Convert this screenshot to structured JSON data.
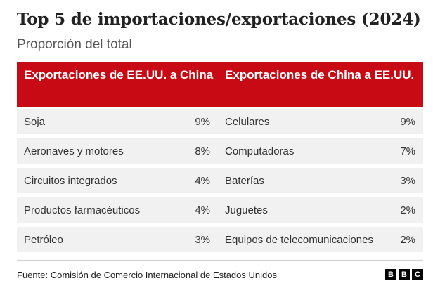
{
  "title": "Top 5 de importaciones/exportaciones (2024)",
  "subtitle": "Proporción del total",
  "source": "Fuente: Comisión de Comercio Internacional de Estados Unidos",
  "logo_letters": [
    "B",
    "B",
    "C"
  ],
  "colors": {
    "header_bg": "#c70a14",
    "row_bg": "#f1f1f1"
  },
  "chart_data": {
    "type": "table",
    "title": "Top 5 de importaciones/exportaciones (2024)",
    "subtitle": "Proporción del total",
    "columns": [
      "Exportaciones de EE.UU. a China",
      "Exportaciones de China a EE.UU."
    ],
    "left_rows": [
      {
        "label": "Soja",
        "value": "9%"
      },
      {
        "label": "Aeronaves y motores",
        "value": "8%"
      },
      {
        "label": "Circuitos integrados",
        "value": "4%"
      },
      {
        "label": "Productos farmacéuticos",
        "value": "4%"
      },
      {
        "label": "Petróleo",
        "value": "3%"
      }
    ],
    "right_rows": [
      {
        "label": "Celulares",
        "value": "9%"
      },
      {
        "label": "Computadoras",
        "value": "7%"
      },
      {
        "label": "Baterías",
        "value": "3%"
      },
      {
        "label": "Juguetes",
        "value": "2%"
      },
      {
        "label": "Equipos de telecomunicaciones",
        "value": "2%"
      }
    ]
  }
}
